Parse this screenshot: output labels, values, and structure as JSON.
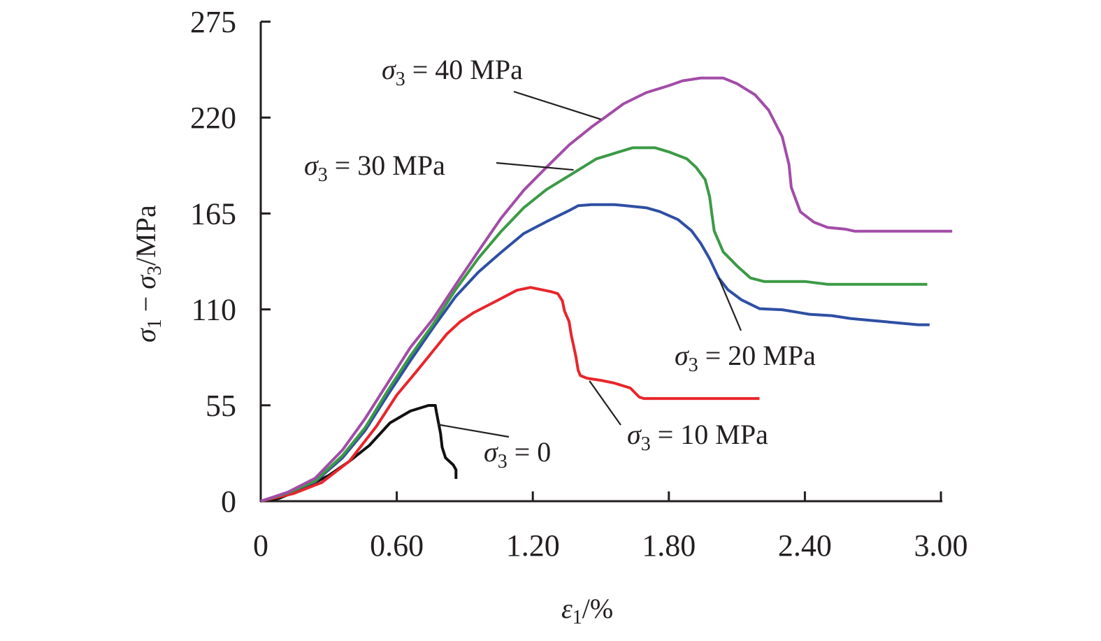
{
  "chart_data": {
    "type": "line",
    "title": "",
    "xlabel": {
      "symbol": "ε",
      "subscript": "1",
      "unit": "/%"
    },
    "ylabel": {
      "parts": [
        "σ",
        "1",
        " − ",
        "σ",
        "3",
        "/MPa"
      ]
    },
    "xlim": [
      0,
      3.0
    ],
    "ylim": [
      0,
      275
    ],
    "x_ticks": [
      0,
      0.6,
      1.2,
      1.8,
      2.4,
      3.0
    ],
    "x_tick_labels": [
      "0",
      "0.60",
      "1.20",
      "1.80",
      "2.40",
      "3.00"
    ],
    "y_ticks": [
      0,
      55,
      110,
      165,
      220,
      275
    ],
    "y_tick_labels": [
      "0",
      "55",
      "110",
      "165",
      "220",
      "275"
    ],
    "grid": false,
    "legend": "none (inline annotations with leader lines)",
    "series": [
      {
        "name": "σ3 = 0",
        "label_prefix": "σ",
        "label_sub": "3",
        "label_suffix": " = 0",
        "color": "#111111",
        "points": [
          [
            0,
            0
          ],
          [
            0.08,
            1.6
          ],
          [
            0.18,
            6.8
          ],
          [
            0.3,
            14.8
          ],
          [
            0.39,
            22.8
          ],
          [
            0.48,
            32.1
          ],
          [
            0.57,
            44.9
          ],
          [
            0.66,
            51.7
          ],
          [
            0.74,
            54.9
          ],
          [
            0.77,
            54.9
          ],
          [
            0.775,
            50.9
          ],
          [
            0.784,
            44.9
          ],
          [
            0.793,
            38.9
          ],
          [
            0.8,
            30.9
          ],
          [
            0.815,
            24.9
          ],
          [
            0.849,
            20.8
          ],
          [
            0.861,
            18
          ],
          [
            0.861,
            12.8
          ]
        ],
        "annotation_anchor": [
          0.78,
          44
        ],
        "annotation_text_pos": "below-right"
      },
      {
        "name": "σ3 = 10 MPa",
        "label_prefix": "σ",
        "label_sub": "3",
        "label_suffix": " = 10 MPa",
        "color": "#e8262b",
        "points": [
          [
            0,
            0
          ],
          [
            0.145,
            4.4
          ],
          [
            0.27,
            10.8
          ],
          [
            0.39,
            22.8
          ],
          [
            0.51,
            42.9
          ],
          [
            0.6,
            60.9
          ],
          [
            0.69,
            74.9
          ],
          [
            0.82,
            95.8
          ],
          [
            0.88,
            103
          ],
          [
            0.94,
            108.2
          ],
          [
            1.03,
            114.2
          ],
          [
            1.13,
            121
          ],
          [
            1.19,
            122.6
          ],
          [
            1.22,
            121.8
          ],
          [
            1.28,
            120.2
          ],
          [
            1.31,
            119
          ],
          [
            1.33,
            115
          ],
          [
            1.34,
            109
          ],
          [
            1.36,
            103
          ],
          [
            1.37,
            95
          ],
          [
            1.38,
            89
          ],
          [
            1.39,
            83
          ],
          [
            1.4,
            75
          ],
          [
            1.41,
            72
          ],
          [
            1.44,
            70.5
          ],
          [
            1.5,
            69.3
          ],
          [
            1.56,
            67.7
          ],
          [
            1.63,
            64.9
          ],
          [
            1.67,
            59.7
          ],
          [
            1.69,
            58.9
          ],
          [
            2.2,
            58.9
          ]
        ],
        "annotation_anchor": [
          1.45,
          69
        ],
        "annotation_text_pos": "below-right"
      },
      {
        "name": "σ3 = 20 MPa",
        "label_prefix": "σ",
        "label_sub": "3",
        "label_suffix": " = 20 MPa",
        "color": "#2e4fa3",
        "points": [
          [
            0,
            0
          ],
          [
            0.12,
            4.8
          ],
          [
            0.24,
            11.2
          ],
          [
            0.36,
            24.8
          ],
          [
            0.46,
            40.5
          ],
          [
            0.56,
            60.9
          ],
          [
            0.66,
            80.6
          ],
          [
            0.76,
            99.4
          ],
          [
            0.86,
            117.4
          ],
          [
            0.96,
            131.4
          ],
          [
            1.06,
            142.7
          ],
          [
            1.16,
            153.5
          ],
          [
            1.26,
            160.3
          ],
          [
            1.36,
            166.7
          ],
          [
            1.4,
            169.5
          ],
          [
            1.46,
            170.1
          ],
          [
            1.56,
            170.1
          ],
          [
            1.64,
            169.1
          ],
          [
            1.7,
            168.3
          ],
          [
            1.76,
            166.1
          ],
          [
            1.84,
            161.5
          ],
          [
            1.9,
            155.1
          ],
          [
            1.94,
            148
          ],
          [
            1.98,
            139
          ],
          [
            2.02,
            128
          ],
          [
            2.06,
            121.3
          ],
          [
            2.12,
            115.5
          ],
          [
            2.2,
            110.4
          ],
          [
            2.3,
            109.8
          ],
          [
            2.42,
            107.2
          ],
          [
            2.52,
            106.4
          ],
          [
            2.6,
            104.8
          ],
          [
            2.7,
            103.6
          ],
          [
            2.8,
            102.4
          ],
          [
            2.9,
            101.2
          ],
          [
            2.95,
            101.2
          ]
        ],
        "annotation_anchor": [
          2.02,
          128
        ],
        "annotation_text_pos": "below-right"
      },
      {
        "name": "σ3 = 30 MPa",
        "label_prefix": "σ",
        "label_sub": "3",
        "label_suffix": " = 30 MPa",
        "color": "#3b9a45",
        "points": [
          [
            0,
            0
          ],
          [
            0.12,
            4.8
          ],
          [
            0.24,
            11.6
          ],
          [
            0.36,
            26.1
          ],
          [
            0.46,
            42.1
          ],
          [
            0.56,
            63.3
          ],
          [
            0.66,
            83.4
          ],
          [
            0.76,
            101.4
          ],
          [
            0.86,
            121.4
          ],
          [
            0.96,
            139.4
          ],
          [
            1.06,
            154.7
          ],
          [
            1.16,
            168.3
          ],
          [
            1.26,
            178.7
          ],
          [
            1.36,
            186.7
          ],
          [
            1.42,
            191.5
          ],
          [
            1.48,
            196.3
          ],
          [
            1.56,
            199.5
          ],
          [
            1.64,
            202.7
          ],
          [
            1.74,
            202.7
          ],
          [
            1.8,
            200.3
          ],
          [
            1.88,
            196.3
          ],
          [
            1.92,
            191.5
          ],
          [
            1.96,
            184.5
          ],
          [
            1.98,
            174.5
          ],
          [
            1.99,
            164.5
          ],
          [
            2.0,
            155
          ],
          [
            2.04,
            143
          ],
          [
            2.1,
            135
          ],
          [
            2.16,
            128
          ],
          [
            2.22,
            126
          ],
          [
            2.4,
            126
          ],
          [
            2.5,
            124.4
          ],
          [
            2.94,
            124.4
          ]
        ],
        "annotation_anchor": [
          1.38,
          190
        ],
        "annotation_text_pos": "left"
      },
      {
        "name": "σ3 = 40 MPa",
        "label_prefix": "σ",
        "label_sub": "3",
        "label_suffix": " = 40 MPa",
        "color": "#a24ca7",
        "points": [
          [
            0,
            0
          ],
          [
            0.12,
            5.2
          ],
          [
            0.24,
            13.2
          ],
          [
            0.36,
            29.3
          ],
          [
            0.46,
            47.3
          ],
          [
            0.56,
            67.7
          ],
          [
            0.66,
            88.2
          ],
          [
            0.76,
            104.6
          ],
          [
            0.86,
            124.2
          ],
          [
            0.96,
            143.4
          ],
          [
            1.06,
            162.3
          ],
          [
            1.16,
            178.3
          ],
          [
            1.26,
            191.5
          ],
          [
            1.36,
            204.3
          ],
          [
            1.46,
            214.7
          ],
          [
            1.52,
            220.3
          ],
          [
            1.6,
            227.9
          ],
          [
            1.7,
            234.3
          ],
          [
            1.8,
            238.3
          ],
          [
            1.86,
            241.1
          ],
          [
            1.94,
            242.7
          ],
          [
            2.04,
            242.7
          ],
          [
            2.1,
            239.5
          ],
          [
            2.18,
            233.1
          ],
          [
            2.24,
            224.3
          ],
          [
            2.3,
            209
          ],
          [
            2.33,
            193
          ],
          [
            2.34,
            180
          ],
          [
            2.38,
            166
          ],
          [
            2.44,
            160
          ],
          [
            2.5,
            157
          ],
          [
            2.58,
            156
          ],
          [
            2.62,
            154.8
          ],
          [
            3.05,
            154.8
          ]
        ],
        "annotation_anchor": [
          1.5,
          219
        ],
        "annotation_text_pos": "upper-left"
      }
    ]
  }
}
